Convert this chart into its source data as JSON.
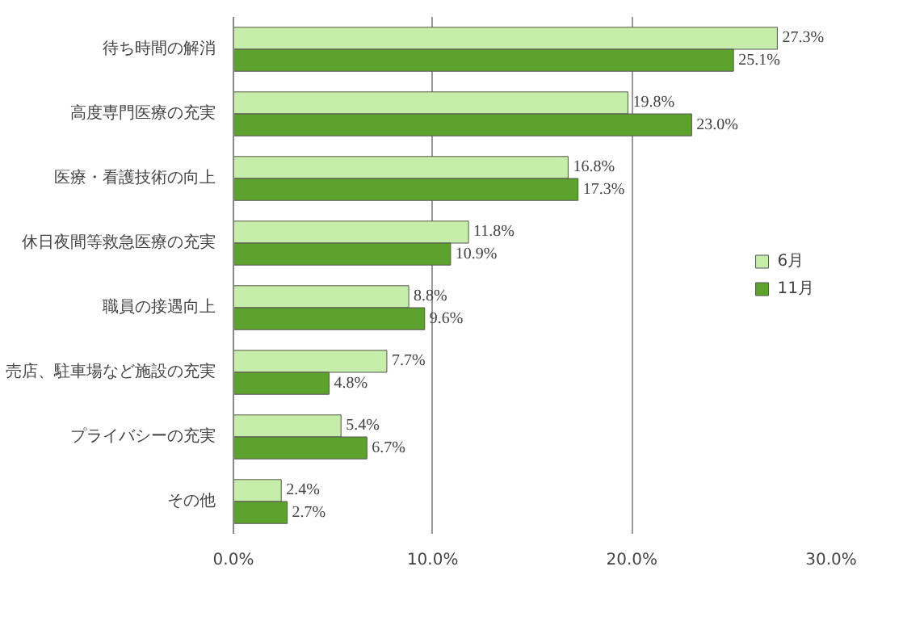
{
  "chart_data": {
    "type": "bar",
    "orientation": "horizontal",
    "categories": [
      "待ち時間の解消",
      "高度専門医療の充実",
      "医療・看護技術の向上",
      "休日夜間等救急医療の充実",
      "職員の接遇向上",
      "売店、駐車場など施設の充実",
      "プライバシーの充実",
      "その他"
    ],
    "series": [
      {
        "name": "6月",
        "color": "#c6eeaa",
        "values": [
          27.3,
          19.8,
          16.8,
          11.8,
          8.8,
          7.7,
          5.4,
          2.4
        ],
        "value_labels": [
          "27.3%",
          "19.8%",
          "16.8%",
          "11.8%",
          "8.8%",
          "7.7%",
          "5.4%",
          "2.4%"
        ]
      },
      {
        "name": "11月",
        "color": "#5ea22e",
        "values": [
          25.1,
          23.0,
          17.3,
          10.9,
          9.6,
          4.8,
          6.7,
          2.7
        ],
        "value_labels": [
          "25.1%",
          "23.0%",
          "17.3%",
          "10.9%",
          "9.6%",
          "4.8%",
          "6.7%",
          "2.7%"
        ]
      }
    ],
    "xlim": [
      0,
      30
    ],
    "xticks": [
      {
        "value": 0,
        "label": "0.0%"
      },
      {
        "value": 10,
        "label": "10.0%"
      },
      {
        "value": 20,
        "label": "20.0%"
      },
      {
        "value": 30,
        "label": "30.0%"
      }
    ],
    "grid": "x",
    "legend": "right"
  }
}
